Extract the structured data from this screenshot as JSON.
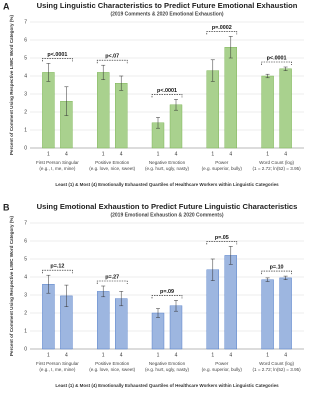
{
  "chart_data": [
    {
      "type": "bar",
      "panel_label": "A",
      "title": "Using Linguistic Characteristics to Predict Future Emotional Exhaustion",
      "subtitle": "(2019 Comments & 2020 Emotional Exhaustion)",
      "y_label": "Percent of Comment Using Respective LIWC Word Category (%)",
      "x_label": "Least (1) & Most (4) Emotionally Exhausted Quartiles of Healthcare Workers within Linguistic Categories",
      "categories": [
        "First Person Singular",
        "Positive Emotion",
        "Negative Emotion",
        "Power",
        "Word Count (log)"
      ],
      "category_examples": [
        "(e.g., I, me, mine)",
        "(e.g. love, nice, sweet)",
        "(e.g. hurt, ugly, nasty)",
        "(e.g. superior, bully)",
        "(1 = 2.72; ln(52) = 3.95)"
      ],
      "series": [
        {
          "name": "1",
          "color": "#a9d18e",
          "values": [
            4.2,
            4.2,
            1.4,
            4.3,
            4.0
          ],
          "errors": [
            0.5,
            0.4,
            0.3,
            0.6,
            0.1
          ]
        },
        {
          "name": "4",
          "color": "#a9d18e",
          "values": [
            2.6,
            3.6,
            2.4,
            5.6,
            4.4
          ],
          "errors": [
            0.8,
            0.4,
            0.3,
            0.6,
            0.1
          ]
        }
      ],
      "p_labels": [
        "p<.0001",
        "p<.07",
        "p<.0001",
        "p=.0002",
        "p<.0001"
      ],
      "ylim": [
        0,
        7
      ],
      "yticks": [
        0,
        1,
        2,
        3,
        4,
        5,
        6,
        7
      ],
      "grid": true,
      "edge_color": "#70ad47"
    },
    {
      "type": "bar",
      "panel_label": "B",
      "title": "Using Emotional Exhaustion to Predict Future Linguistic Characteristics",
      "subtitle": "(2019 Emotional Exhaustion & 2020 Comments)",
      "y_label": "Percent of Comment Using Respective LIWC Word Category (%)",
      "x_label": "Least (1) & Most (4) Emotionally Exhausted Quartiles of Healthcare Workers within Linguistic Categories",
      "categories": [
        "First Person Singular",
        "Positive Emotion",
        "Negative Emotion",
        "Power",
        "Word Count (log)"
      ],
      "category_examples": [
        "(e.g., I, me, mine)",
        "(e.g. love, nice, sweet)",
        "(e.g. hurt, ugly, nasty)",
        "(e.g. superior, bully)",
        "(1 = 2.72; ln(52) = 3.95)"
      ],
      "series": [
        {
          "name": "1",
          "color": "#9db6e0",
          "values": [
            3.6,
            3.2,
            2.0,
            4.4,
            3.85
          ],
          "errors": [
            0.5,
            0.3,
            0.25,
            0.6,
            0.1
          ]
        },
        {
          "name": "4",
          "color": "#9db6e0",
          "values": [
            2.95,
            2.8,
            2.4,
            5.2,
            3.95
          ],
          "errors": [
            0.6,
            0.4,
            0.3,
            0.5,
            0.1
          ]
        }
      ],
      "p_labels": [
        "p=.12",
        "p=.27",
        "p=.09",
        "p=.05",
        "p=.10"
      ],
      "ylim": [
        0,
        7
      ],
      "yticks": [
        0,
        1,
        2,
        3,
        4,
        5,
        6,
        7
      ],
      "grid": true,
      "edge_color": "#4472c4"
    }
  ]
}
